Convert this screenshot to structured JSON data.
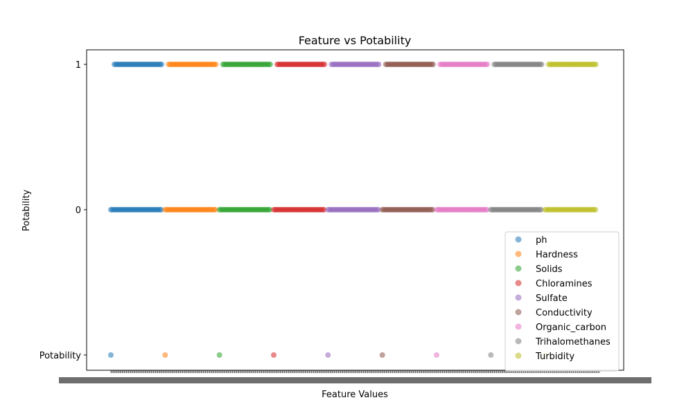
{
  "chart_data": {
    "type": "scatter",
    "title": "Feature vs Potability",
    "xlabel": "Feature Values",
    "ylabel": "Potability",
    "y_categories": [
      "Potability",
      "0",
      "1"
    ],
    "grid": false,
    "legend_position": "lower-right",
    "point_alpha": 0.55,
    "series": [
      {
        "name": "ph",
        "color": "#1f77b4",
        "y1_x_range": [
          0.0,
          1.0
        ],
        "y0_x_range": [
          0.0,
          1.0
        ]
      },
      {
        "name": "Hardness",
        "color": "#ff7f0e",
        "y1_x_range": [
          0.0,
          1.0
        ],
        "y0_x_range": [
          0.0,
          1.0
        ]
      },
      {
        "name": "Solids",
        "color": "#2ca02c",
        "y1_x_range": [
          0.0,
          1.0
        ],
        "y0_x_range": [
          0.0,
          1.0
        ]
      },
      {
        "name": "Chloramines",
        "color": "#d62728",
        "y1_x_range": [
          0.0,
          1.0
        ],
        "y0_x_range": [
          0.0,
          1.0
        ]
      },
      {
        "name": "Sulfate",
        "color": "#9467bd",
        "y1_x_range": [
          0.0,
          1.0
        ],
        "y0_x_range": [
          0.0,
          1.0
        ]
      },
      {
        "name": "Conductivity",
        "color": "#8c564b",
        "y1_x_range": [
          0.0,
          1.0
        ],
        "y0_x_range": [
          0.0,
          1.0
        ]
      },
      {
        "name": "Organic_carbon",
        "color": "#e377c2",
        "y1_x_range": [
          0.0,
          1.0
        ],
        "y0_x_range": [
          0.0,
          1.0
        ]
      },
      {
        "name": "Trihalomethanes",
        "color": "#7f7f7f",
        "y1_x_range": [
          0.0,
          1.0
        ],
        "y0_x_range": [
          0.0,
          1.0
        ]
      },
      {
        "name": "Turbidity",
        "color": "#bcbd22",
        "y1_x_range": [
          0.0,
          1.0
        ],
        "y0_x_range": [
          0.0,
          1.0
        ]
      }
    ]
  }
}
